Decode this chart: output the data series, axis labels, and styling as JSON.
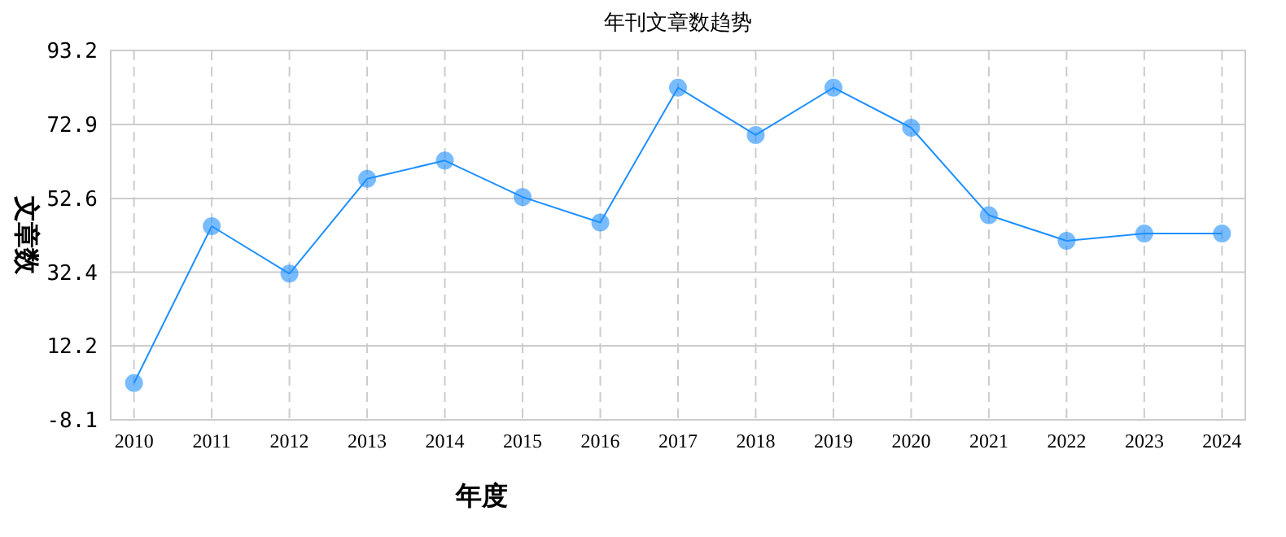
{
  "chart_data": {
    "type": "line",
    "title": "年刊文章数趋势",
    "xlabel": "年度",
    "ylabel": "文章数",
    "categories": [
      "2010",
      "2011",
      "2012",
      "2013",
      "2014",
      "2015",
      "2016",
      "2017",
      "2018",
      "2019",
      "2020",
      "2021",
      "2022",
      "2023",
      "2024"
    ],
    "series": [
      {
        "color": "#1e90ff",
        "values": [
          2,
          45,
          32,
          58,
          63,
          53,
          46,
          83,
          70,
          83,
          72,
          48,
          41,
          43,
          43
        ]
      }
    ],
    "ylim": [
      -8.1,
      93.2
    ],
    "yticks": [
      -8.1,
      12.2,
      32.4,
      52.6,
      72.9,
      93.2
    ],
    "grid": true,
    "marker": "circle",
    "line_style": "solid"
  }
}
